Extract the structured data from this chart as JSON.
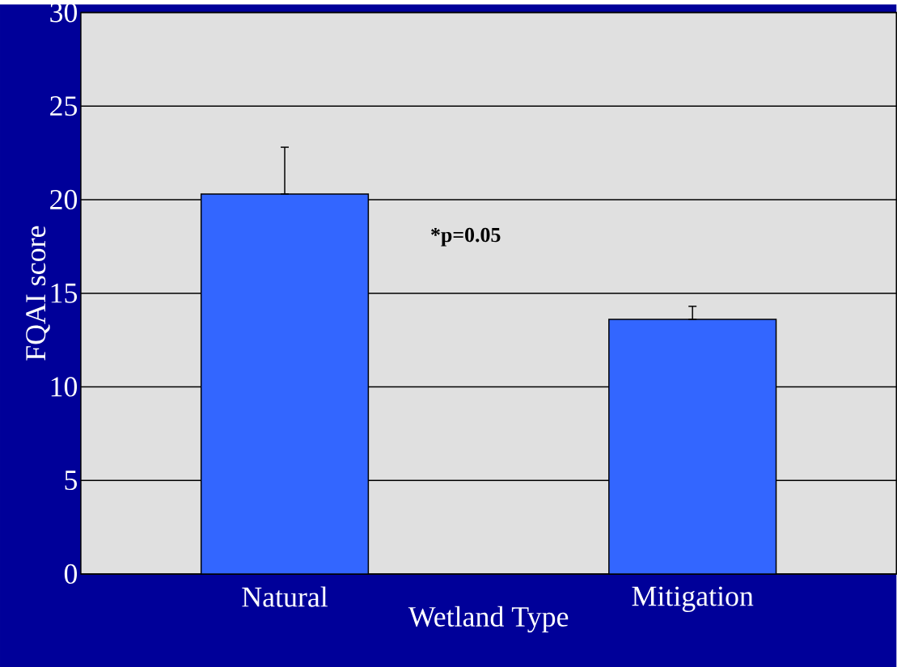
{
  "chart_data": {
    "type": "bar",
    "xlabel": "Wetland Type",
    "ylabel": "FQAI score",
    "categories": [
      "Natural",
      "Mitigation"
    ],
    "values": [
      20.3,
      13.6
    ],
    "errors": [
      [
        20.3,
        22.8
      ],
      [
        13.6,
        14.3
      ]
    ],
    "color": "#3366ff",
    "ylim": [
      0,
      30
    ],
    "yticks": [
      0,
      5,
      10,
      15,
      20,
      25,
      30
    ],
    "grid": "y",
    "annotations": [
      "*p=0.05"
    ]
  }
}
